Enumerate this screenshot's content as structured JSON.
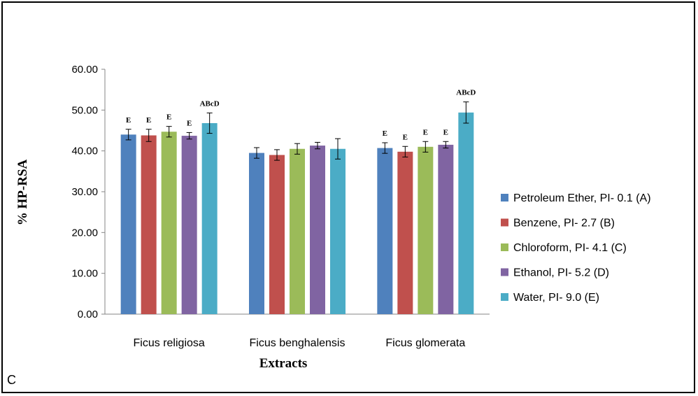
{
  "panel_label": "C",
  "chart_data": {
    "type": "bar",
    "title": "",
    "xlabel": "Extracts",
    "ylabel": "% HP-RSA",
    "ylim": [
      0,
      60
    ],
    "yticks": [
      "0.00",
      "10.00",
      "20.00",
      "30.00",
      "40.00",
      "50.00",
      "60.00"
    ],
    "categories": [
      "Ficus religiosa",
      "Ficus benghalensis",
      "Ficus glomerata"
    ],
    "legend_position": "right",
    "grid": false,
    "series": [
      {
        "name": "Petroleum Ether, PI- 0.1 (A)",
        "color": "#4F81BD",
        "values": [
          44.0,
          39.5,
          40.7
        ],
        "errors": [
          1.3,
          1.3,
          1.3
        ],
        "labels": [
          "E",
          "",
          "E"
        ]
      },
      {
        "name": "Benzene, PI- 2.7 (B)",
        "color": "#C0504D",
        "values": [
          43.8,
          39.0,
          39.8
        ],
        "errors": [
          1.5,
          1.3,
          1.3
        ],
        "labels": [
          "E",
          "",
          "E"
        ]
      },
      {
        "name": "Chloroform, PI- 4.1 (C)",
        "color": "#9BBB59",
        "values": [
          44.7,
          40.5,
          41.0
        ],
        "errors": [
          1.3,
          1.3,
          1.3
        ],
        "labels": [
          "E",
          "",
          "E"
        ]
      },
      {
        "name": "Ethanol, PI- 5.2 (D)",
        "color": "#8064A2",
        "values": [
          43.7,
          41.3,
          41.5
        ],
        "errors": [
          0.8,
          0.8,
          0.8
        ],
        "labels": [
          "E",
          "",
          "E"
        ]
      },
      {
        "name": "Water, PI- 9.0 (E)",
        "color": "#4BACC6",
        "values": [
          46.8,
          40.5,
          49.4
        ],
        "errors": [
          2.5,
          2.5,
          2.6
        ],
        "labels": [
          "ABcD",
          "",
          "ABcD"
        ]
      }
    ]
  }
}
